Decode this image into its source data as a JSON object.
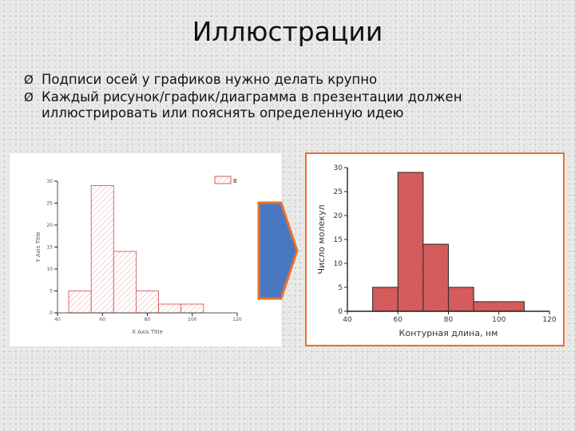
{
  "title": "Иллюстрации",
  "bullets": [
    {
      "marker": "Ø",
      "text": "Подписи осей у графиков нужно делать крупно"
    },
    {
      "marker": "Ø",
      "text": "Каждый рисунок/график/диаграмма в презентации должен иллюстрировать или пояснять определенную идею"
    }
  ],
  "colors": {
    "arrow_fill": "#4a78c0",
    "arrow_border": "#e8702a",
    "frame_border": "#e8702a",
    "left_bar_stroke": "#d65a5a",
    "right_bar_fill": "#d25252"
  },
  "chart_data": [
    {
      "type": "bar",
      "style": "histogram",
      "bins": [
        [
          45,
          55
        ],
        [
          55,
          65
        ],
        [
          65,
          75
        ],
        [
          75,
          85
        ],
        [
          85,
          95
        ],
        [
          95,
          105
        ]
      ],
      "values": [
        5,
        29,
        14,
        5,
        2,
        2
      ],
      "x_ticks": [
        40,
        60,
        80,
        100,
        120
      ],
      "y_ticks": [
        0,
        5,
        10,
        15,
        20,
        25,
        30
      ],
      "xlim": [
        40,
        120
      ],
      "ylim": [
        0,
        30
      ],
      "xlabel": "X Axis Title",
      "ylabel": "Y Axis Title",
      "legend": "B",
      "legend_position": "top-right",
      "grid": false
    },
    {
      "type": "bar",
      "style": "histogram",
      "bins": [
        [
          50,
          60
        ],
        [
          60,
          70
        ],
        [
          70,
          80
        ],
        [
          80,
          90
        ],
        [
          90,
          110
        ]
      ],
      "values": [
        5,
        29,
        14,
        5,
        2
      ],
      "x_ticks": [
        40,
        60,
        80,
        100,
        120
      ],
      "y_ticks": [
        0,
        5,
        10,
        15,
        20,
        25,
        30
      ],
      "xlim": [
        40,
        120
      ],
      "ylim": [
        0,
        30
      ],
      "xlabel": "Контурная длина, нм",
      "ylabel": "Число молекул",
      "grid": false
    }
  ]
}
